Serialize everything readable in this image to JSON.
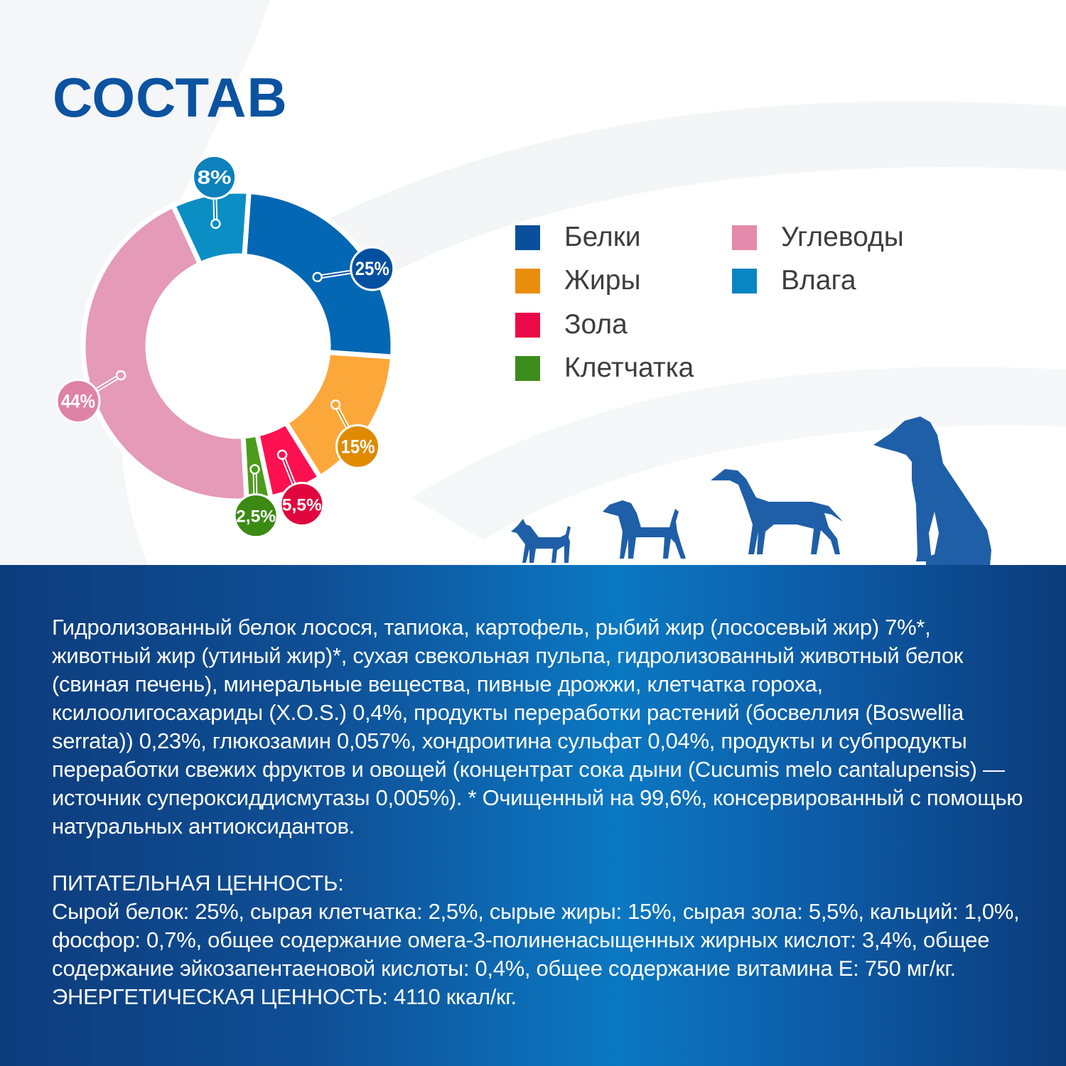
{
  "title": "СОСТАВ",
  "chart_data": {
    "type": "pie",
    "variant": "donut",
    "title": "",
    "categories": [
      "Белки",
      "Жиры",
      "Зола",
      "Клетчатка",
      "Углеводы",
      "Влага"
    ],
    "values": [
      25,
      15,
      5.5,
      2.5,
      44,
      8
    ],
    "data_labels": [
      "25%",
      "15%",
      "5,5%",
      "2,5%",
      "44%",
      "8%"
    ],
    "colors": [
      "#0467b3",
      "#fca73a",
      "#fd1150",
      "#4c9c1c",
      "#e59ab7",
      "#0a8ec4"
    ],
    "label_colors": [
      "#0450a0",
      "#e08a00",
      "#e0073f",
      "#3b8a14",
      "#de82a6",
      "#0c81bb"
    ],
    "legend": {
      "placement": "right",
      "items": [
        {
          "label": "Белки",
          "color": "#0a4f9c"
        },
        {
          "label": "Жиры",
          "color": "#e98e0c"
        },
        {
          "label": "Зола",
          "color": "#ea0a47"
        },
        {
          "label": "Клетчатка",
          "color": "#3c8c1c"
        },
        {
          "label": "Углеводы",
          "color": "#e48aaa"
        },
        {
          "label": "Влага",
          "color": "#0a85c4"
        }
      ]
    }
  },
  "composition_text": "Гидролизованный белок лосося, тапиока, картофель, рыбий жир (лососевый жир) 7%*, животный жир (утиный жир)*, сухая свекольная пульпа, гидролизованный животный белок (свиная печень), минеральные вещества, пивные дрожжи, клетчатка гороха, ксилоолигосахариды (X.O.S.) 0,4%, продукты переработки растений (босвеллия (Boswellia serrata)) 0,23%, глюкозамин 0,057%, хондроитина сульфат 0,04%, продукты и субпродукты переработки свежих фруктов и овощей (концентрат сока дыни (Cucumis melo cantalupensis) — источник супероксиддисмутазы 0,005%). * Очищенный на 99,6%, консервированный с помощью натуральных антиоксидантов.",
  "nutrition_heading": "ПИТАТЕЛЬНАЯ ЦЕННОСТЬ:",
  "nutrition_text": "Сырой белок: 25%, сырая клетчатка: 2,5%, сырые жиры: 15%, сырая зола: 5,5%, кальций: 1,0%, фосфор: 0,7%, общее содержание омега-3-полиненасыщенных жирных кислот: 3,4%, общее содержание эйкозапентаеновой кислоты: 0,4%, общее содержание витамина E: 750 мг/кг. ЭНЕРГЕТИЧЕСКАЯ ЦЕННОСТЬ: 4110 ккал/кг.",
  "dog_color": "#1f5fa8"
}
